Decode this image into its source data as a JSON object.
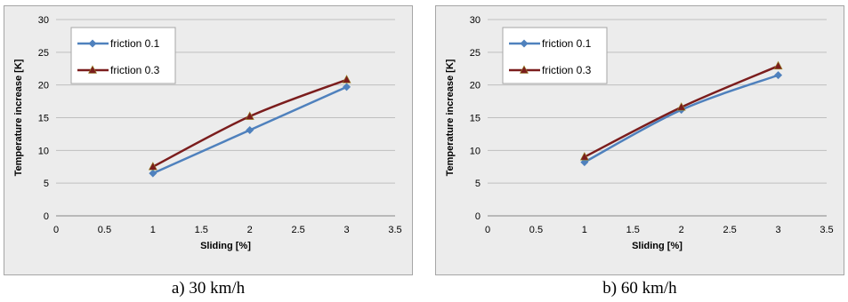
{
  "chart_data": [
    {
      "type": "line",
      "caption": "a) 30 km/h",
      "xlabel": "Sliding [%]",
      "ylabel": "Temperature increase [K]",
      "xlim": [
        0,
        3.5
      ],
      "ylim": [
        0,
        30
      ],
      "xticks": [
        "0",
        "0.5",
        "1",
        "1.5",
        "2",
        "2.5",
        "3",
        "3.5"
      ],
      "yticks": [
        "0",
        "5",
        "10",
        "15",
        "20",
        "25",
        "30"
      ],
      "grid": "horizontal",
      "legend": "top-left",
      "x": [
        1,
        2,
        3
      ],
      "series": [
        {
          "name": "friction 0.1",
          "values": [
            6.5,
            13.1,
            19.7
          ],
          "color": "#4f81bd",
          "marker": "diamond"
        },
        {
          "name": "friction 0.3",
          "values": [
            7.5,
            15.2,
            20.8
          ],
          "color": "#7b1d1d",
          "marker": "triangle"
        }
      ]
    },
    {
      "type": "line",
      "caption": "b)  60 km/h",
      "xlabel": "Sliding [%]",
      "ylabel": "Temperature increase [K]",
      "xlim": [
        0,
        3.5
      ],
      "ylim": [
        0,
        30
      ],
      "xticks": [
        "0",
        "0.5",
        "1",
        "1.5",
        "2",
        "2.5",
        "3",
        "3.5"
      ],
      "yticks": [
        "0",
        "5",
        "10",
        "15",
        "20",
        "25",
        "30"
      ],
      "grid": "horizontal",
      "legend": "top-left",
      "x": [
        1,
        2,
        3
      ],
      "series": [
        {
          "name": "friction 0.1",
          "values": [
            8.2,
            16.2,
            21.5
          ],
          "color": "#4f81bd",
          "marker": "diamond"
        },
        {
          "name": "friction 0.3",
          "values": [
            9.0,
            16.6,
            22.9
          ],
          "color": "#7b1d1d",
          "marker": "triangle"
        }
      ]
    }
  ]
}
